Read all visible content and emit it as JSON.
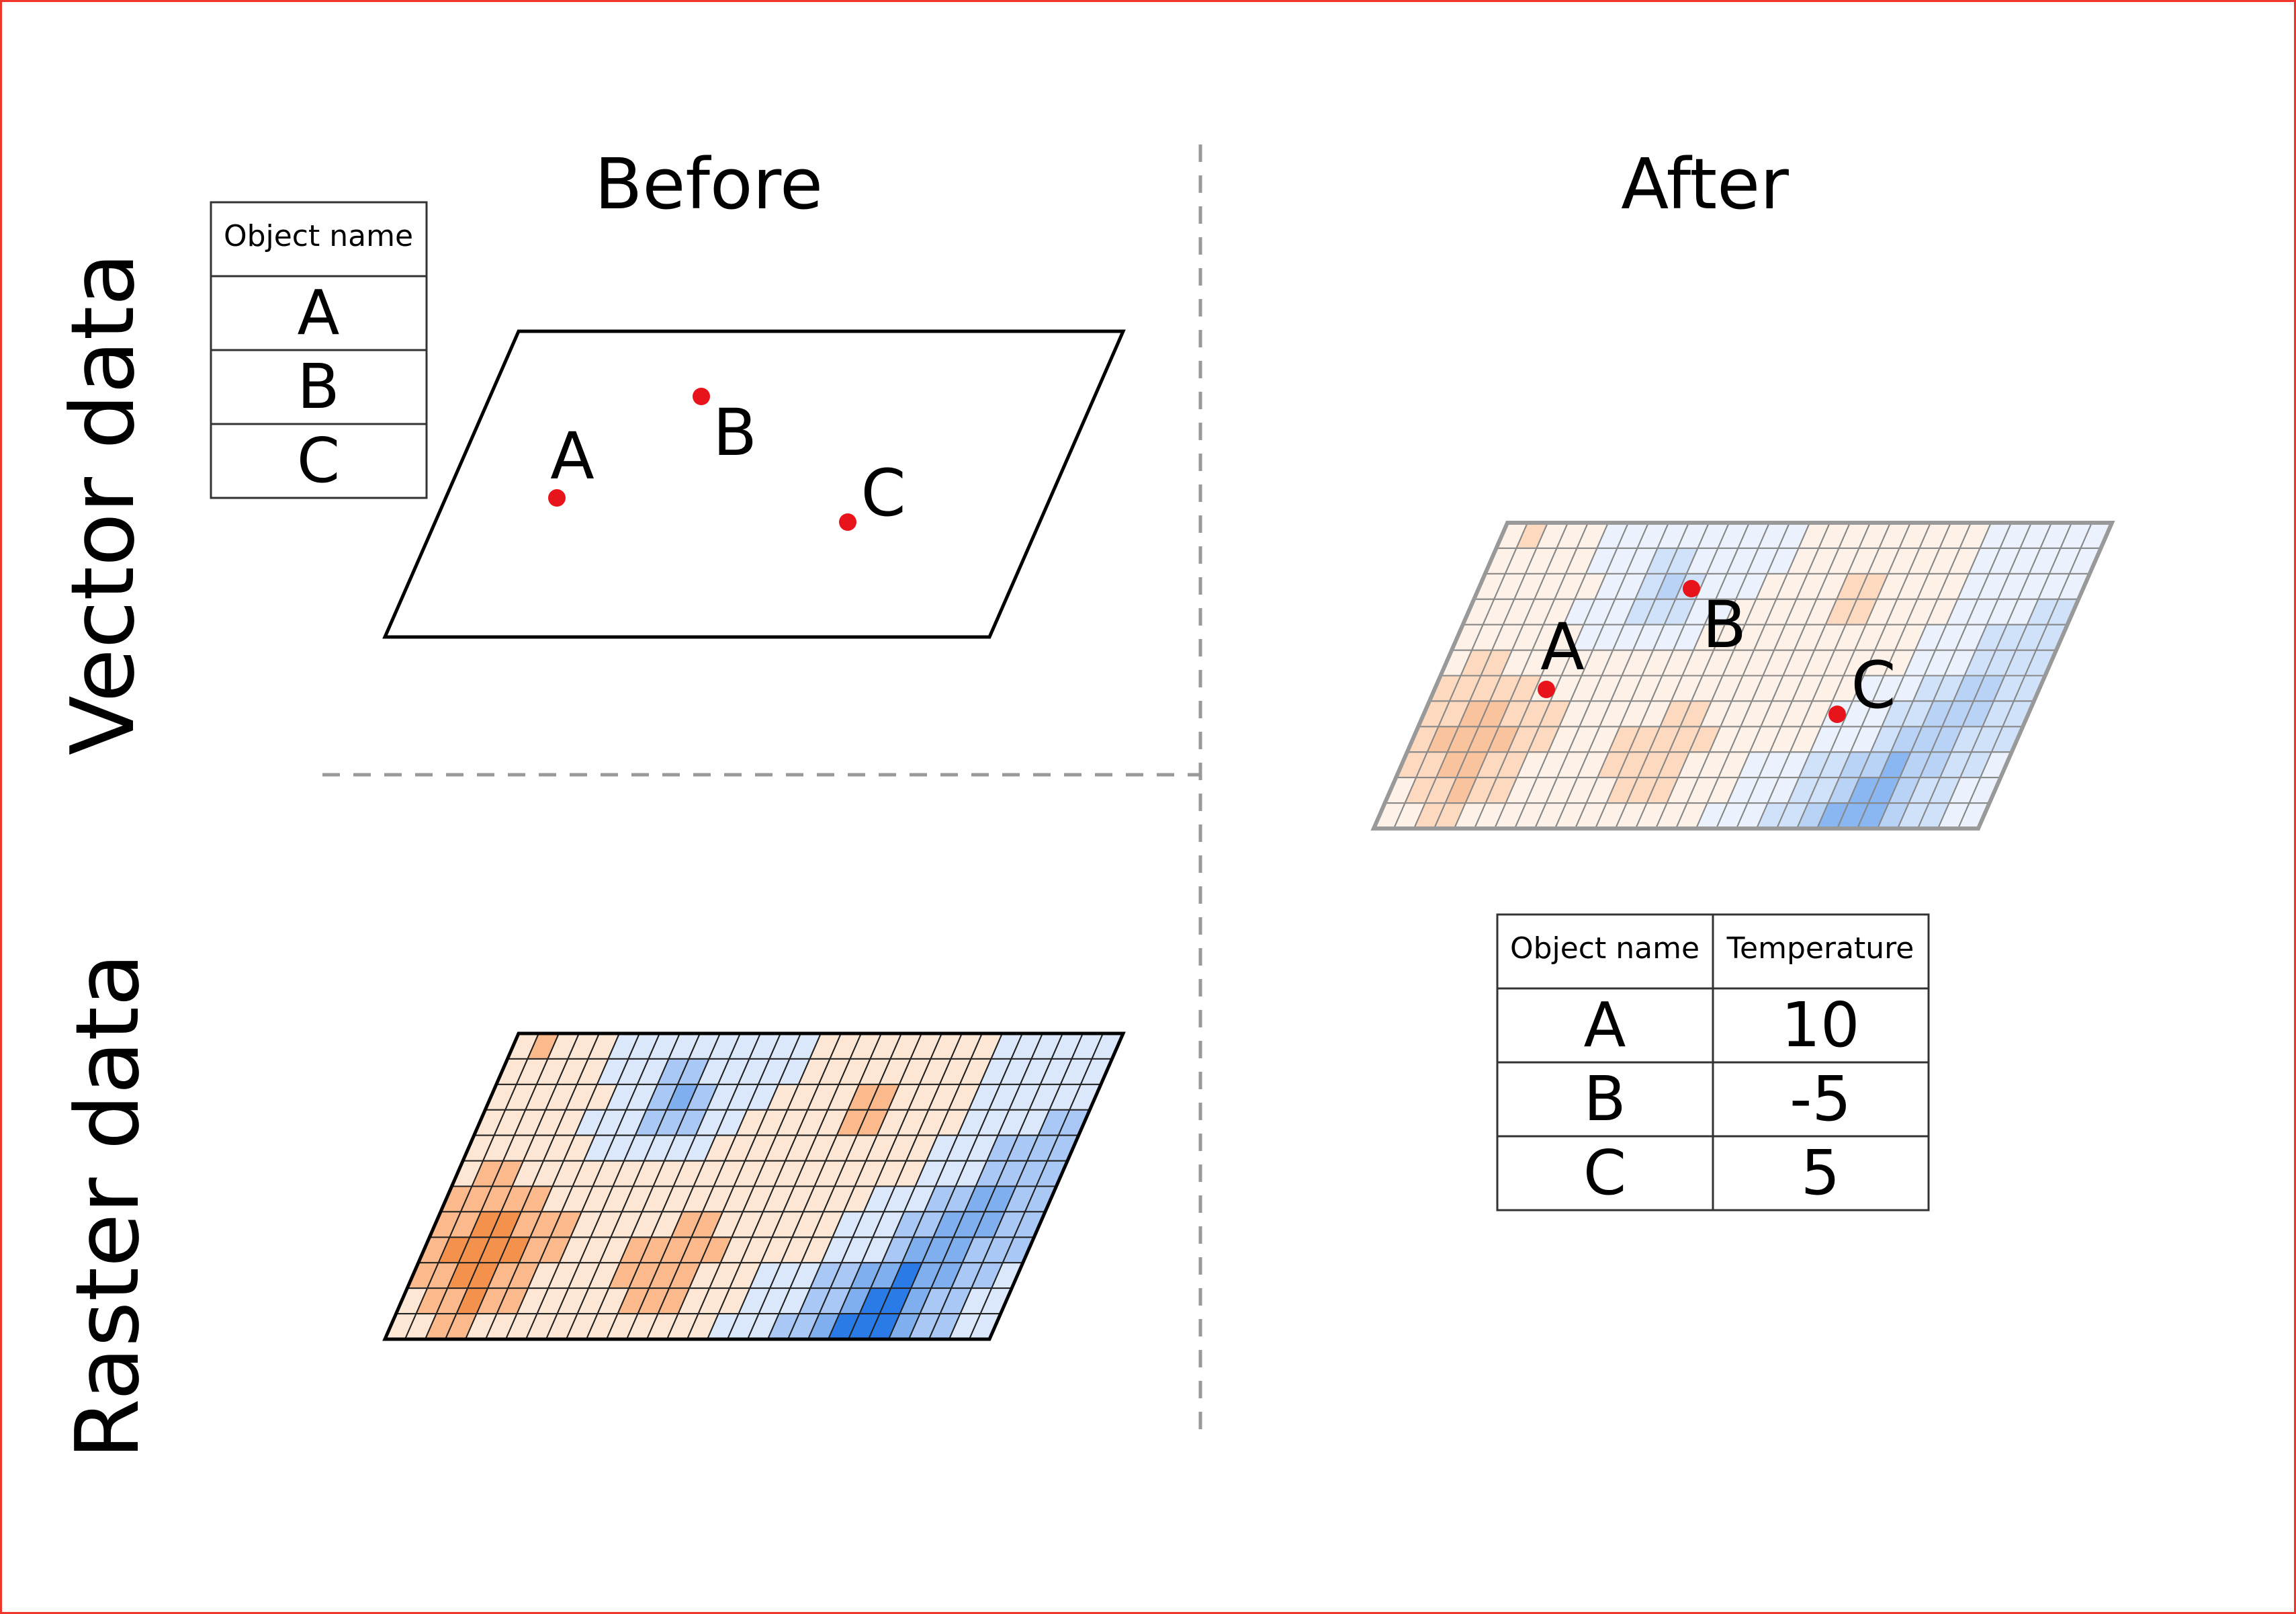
{
  "headers": {
    "before": "Before",
    "after": "After"
  },
  "rows": {
    "vector": "Vector data",
    "raster": "Raster data"
  },
  "before_table": {
    "header": "Object name",
    "rows": [
      "A",
      "B",
      "C"
    ]
  },
  "points": [
    {
      "label": "A"
    },
    {
      "label": "B"
    },
    {
      "label": "C"
    }
  ],
  "after_table": {
    "headers": [
      "Object name",
      "Temperature"
    ],
    "rows": [
      [
        "A",
        "10"
      ],
      [
        "B",
        "-5"
      ],
      [
        "C",
        "5"
      ]
    ]
  },
  "colors": {
    "frame": "#f0352b",
    "point": "#e8141b",
    "divider": "#999999",
    "scale_cold": "#2a7ae8",
    "scale_neutral": "#ffffff",
    "scale_warm": "#f06a0f"
  },
  "raster_grid": {
    "values": [
      [
        1,
        2,
        1,
        1,
        1,
        -1,
        -1,
        -1,
        -1,
        -1,
        -1,
        -1,
        -1,
        -1,
        -1,
        1,
        1,
        1,
        1,
        1,
        1,
        1,
        1,
        1,
        -1,
        -1,
        -1,
        -1,
        -1,
        -1
      ],
      [
        1,
        1,
        1,
        1,
        1,
        -1,
        -1,
        -1,
        -2,
        -2,
        -1,
        -1,
        -1,
        -1,
        -1,
        1,
        1,
        1,
        1,
        1,
        1,
        1,
        1,
        1,
        -1,
        -1,
        -1,
        -1,
        -1,
        -1
      ],
      [
        1,
        1,
        1,
        1,
        1,
        1,
        -1,
        -1,
        -2,
        -3,
        -2,
        -1,
        -1,
        -1,
        1,
        1,
        1,
        1,
        2,
        2,
        1,
        1,
        1,
        1,
        -1,
        -1,
        -1,
        -1,
        -1,
        -1
      ],
      [
        1,
        1,
        1,
        1,
        1,
        -1,
        -1,
        -1,
        -2,
        -2,
        -2,
        -1,
        -1,
        1,
        1,
        1,
        1,
        1,
        2,
        2,
        1,
        1,
        1,
        1,
        -1,
        -1,
        -1,
        -1,
        -2,
        -2
      ],
      [
        1,
        1,
        1,
        1,
        1,
        1,
        -1,
        -1,
        -1,
        -1,
        -1,
        -1,
        1,
        1,
        1,
        1,
        1,
        1,
        1,
        1,
        1,
        1,
        1,
        -1,
        -1,
        -1,
        -2,
        -2,
        -2,
        -2
      ],
      [
        1,
        2,
        2,
        1,
        1,
        1,
        1,
        1,
        1,
        1,
        1,
        1,
        1,
        1,
        1,
        1,
        1,
        1,
        1,
        1,
        1,
        1,
        1,
        -1,
        -1,
        -1,
        -2,
        -2,
        -2,
        -2
      ],
      [
        2,
        2,
        2,
        2,
        2,
        1,
        1,
        1,
        1,
        1,
        1,
        1,
        1,
        1,
        1,
        1,
        1,
        1,
        1,
        1,
        1,
        -1,
        -1,
        -1,
        -2,
        -2,
        -3,
        -3,
        -2,
        -2
      ],
      [
        2,
        2,
        3,
        3,
        2,
        2,
        2,
        1,
        1,
        1,
        1,
        1,
        2,
        2,
        1,
        1,
        1,
        1,
        1,
        1,
        -1,
        -1,
        -1,
        -2,
        -2,
        -3,
        -3,
        -3,
        -2,
        -2
      ],
      [
        2,
        3,
        3,
        3,
        3,
        2,
        2,
        1,
        1,
        1,
        2,
        2,
        2,
        2,
        2,
        1,
        1,
        1,
        1,
        1,
        -1,
        -1,
        -1,
        -2,
        -3,
        -3,
        -3,
        -2,
        -2,
        -2
      ],
      [
        2,
        2,
        3,
        3,
        2,
        2,
        1,
        1,
        1,
        1,
        2,
        2,
        2,
        2,
        1,
        1,
        1,
        -1,
        -1,
        -1,
        -2,
        -2,
        -3,
        -3,
        -4,
        -3,
        -3,
        -2,
        -2,
        -1
      ],
      [
        1,
        2,
        2,
        3,
        2,
        2,
        1,
        1,
        1,
        1,
        1,
        2,
        2,
        2,
        1,
        1,
        1,
        -1,
        -1,
        -1,
        -2,
        -2,
        -3,
        -4,
        -4,
        -3,
        -2,
        -2,
        -1,
        -1
      ],
      [
        1,
        1,
        2,
        2,
        1,
        1,
        1,
        1,
        1,
        1,
        1,
        1,
        1,
        1,
        1,
        1,
        -1,
        -1,
        -1,
        -2,
        -2,
        -3,
        -4,
        -4,
        -4,
        -3,
        -2,
        -2,
        -1,
        -1
      ]
    ]
  }
}
